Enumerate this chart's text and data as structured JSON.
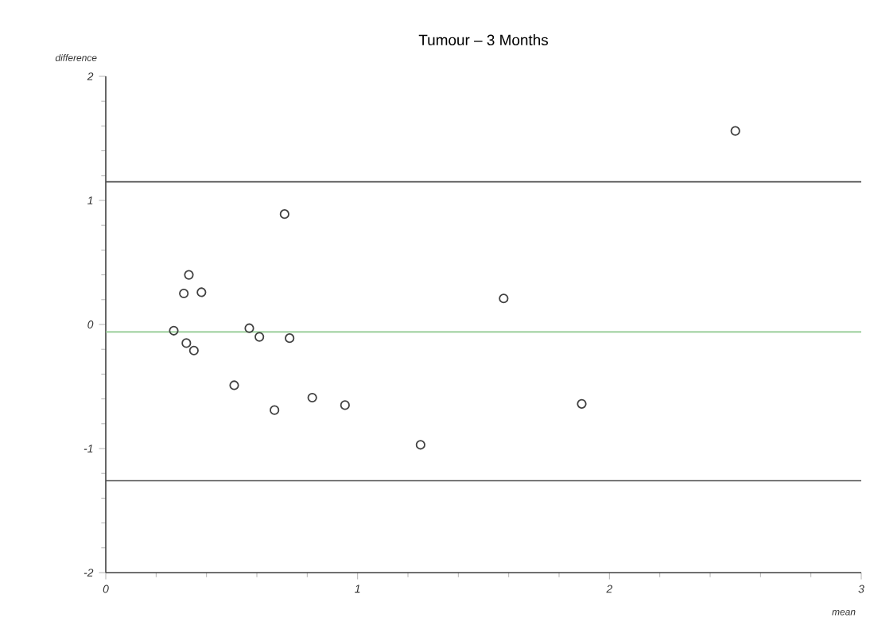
{
  "chart_data": {
    "type": "scatter",
    "title": "Tumour – 3 Months",
    "xlabel": "mean",
    "ylabel": "difference",
    "x": [
      0.27,
      0.31,
      0.33,
      0.32,
      0.35,
      0.38,
      0.51,
      0.57,
      0.61,
      0.67,
      0.71,
      0.73,
      0.82,
      0.95,
      1.25,
      1.58,
      1.89,
      2.5
    ],
    "series": [
      {
        "color": "#404040",
        "values": [
          -0.05,
          0.25,
          0.4,
          -0.15,
          -0.21,
          0.26,
          -0.49,
          -0.03,
          -0.1,
          -0.69,
          0.89,
          -0.11,
          -0.59,
          -0.65,
          -0.97,
          0.21,
          -0.64,
          1.56
        ]
      }
    ],
    "marker": "circle",
    "xlim": [
      0,
      3
    ],
    "ylim": [
      -2,
      2
    ],
    "xticks": [
      0,
      1,
      2,
      3
    ],
    "yticks": [
      -2,
      -1,
      0,
      1,
      2
    ],
    "ref_lines": [
      {
        "axis": "y",
        "value": 1.15,
        "color": "#505050"
      },
      {
        "axis": "y",
        "value": -0.06,
        "color": "#8cc88c"
      },
      {
        "axis": "y",
        "value": -1.26,
        "color": "#505050"
      }
    ]
  }
}
